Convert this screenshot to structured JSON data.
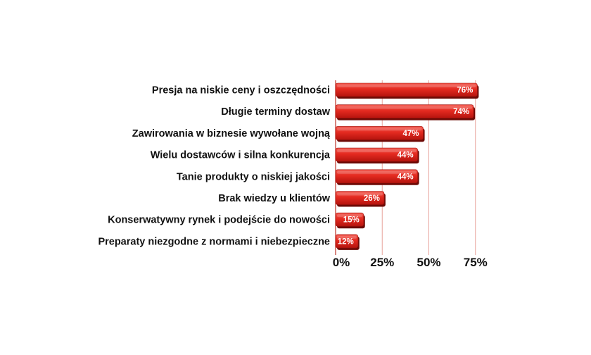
{
  "chart_data": {
    "type": "bar",
    "orientation": "horizontal",
    "title": "",
    "xlabel": "",
    "ylabel": "",
    "xlim": [
      0,
      75
    ],
    "x_ticks": [
      0,
      25,
      50,
      75
    ],
    "x_tick_labels": [
      "0%",
      "25%",
      "50%",
      "75%"
    ],
    "grid": "vertical",
    "legend": "none",
    "categories": [
      "Presja na niskie ceny i oszczędności",
      "Długie terminy dostaw",
      "Zawirowania w biznesie wywołane wojną",
      "Wielu dostawców i silna konkurencja",
      "Tanie produkty o niskiej jakości",
      "Brak wiedzy u klientów",
      "Konserwatywny rynek i podejście do nowości",
      "Preparaty niezgodne z normami i niebezpieczne"
    ],
    "values": [
      76,
      74,
      47,
      44,
      44,
      26,
      15,
      12
    ],
    "value_labels": [
      "76%",
      "74%",
      "47%",
      "44%",
      "44%",
      "26%",
      "15%",
      "12%"
    ],
    "colors": {
      "bar_light": "#f2483e",
      "bar_mid": "#e0231b",
      "bar_dark": "#9c0f0a",
      "grid": "#e8a39c",
      "shadow": "#6d0a06"
    }
  }
}
